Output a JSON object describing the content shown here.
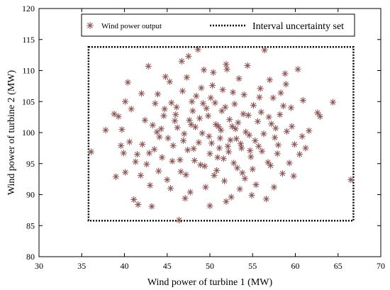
{
  "chart_data": {
    "type": "scatter",
    "xlabel": "Wind power of turbine 1 (MW)",
    "ylabel": "Wind power of turbine 2 (MW)",
    "xlim": [
      30,
      70
    ],
    "ylim": [
      80,
      120
    ],
    "xticks": [
      "30",
      "35",
      "40",
      "45",
      "50",
      "55",
      "60",
      "65",
      "70"
    ],
    "yticks": [
      "80",
      "85",
      "90",
      "95",
      "100",
      "105",
      "110",
      "115",
      "120"
    ],
    "legend": {
      "placement": "top",
      "entries": [
        "Wind power output",
        "Interval uncertainty set"
      ]
    },
    "marker_color": "#8b5555",
    "series": [
      {
        "name": "Wind power output",
        "marker": "asterisk",
        "points": [
          [
            36.1,
            96.9
          ],
          [
            37.8,
            100.4
          ],
          [
            38.8,
            103.0
          ],
          [
            39.3,
            102.6
          ],
          [
            39.6,
            97.9
          ],
          [
            39.9,
            96.7
          ],
          [
            39.7,
            100.5
          ],
          [
            40.1,
            105.0
          ],
          [
            40.4,
            108.1
          ],
          [
            40.1,
            93.6
          ],
          [
            40.8,
            103.8
          ],
          [
            41.1,
            89.2
          ],
          [
            41.6,
            88.4
          ],
          [
            41.5,
            96.5
          ],
          [
            42.1,
            98.1
          ],
          [
            42.6,
            94.9
          ],
          [
            42.8,
            110.7
          ],
          [
            43.2,
            88.1
          ],
          [
            43.3,
            101.2
          ],
          [
            43.6,
            104.7
          ],
          [
            43.9,
            106.2
          ],
          [
            44.1,
            99.3
          ],
          [
            44.4,
            96.0
          ],
          [
            44.7,
            103.8
          ],
          [
            45.0,
            92.4
          ],
          [
            45.3,
            108.2
          ],
          [
            45.6,
            95.4
          ],
          [
            45.9,
            101.9
          ],
          [
            46.1,
            104.1
          ],
          [
            46.4,
            85.9
          ],
          [
            46.7,
            111.5
          ],
          [
            46.9,
            98.7
          ],
          [
            47.2,
            93.2
          ],
          [
            47.5,
            112.3
          ],
          [
            47.7,
            90.4
          ],
          [
            47.8,
            101.3
          ],
          [
            48.1,
            97.4
          ],
          [
            48.4,
            105.9
          ],
          [
            48.6,
            113.4
          ],
          [
            48.9,
            94.8
          ],
          [
            49.1,
            99.9
          ],
          [
            49.3,
            110.1
          ],
          [
            49.5,
            91.2
          ],
          [
            49.8,
            102.7
          ],
          [
            50.0,
            96.6
          ],
          [
            50.0,
            88.2
          ],
          [
            50.3,
            107.6
          ],
          [
            50.6,
            104.8
          ],
          [
            50.8,
            93.9
          ],
          [
            51.0,
            101.0
          ],
          [
            51.2,
            99.1
          ],
          [
            51.4,
            103.5
          ],
          [
            51.6,
            95.8
          ],
          [
            51.9,
            111.0
          ],
          [
            52.1,
            97.8
          ],
          [
            52.3,
            102.1
          ],
          [
            52.5,
            89.6
          ],
          [
            52.7,
            106.5
          ],
          [
            53.0,
            100.6
          ],
          [
            53.2,
            94.3
          ],
          [
            53.4,
            108.7
          ],
          [
            53.6,
            98.2
          ],
          [
            53.9,
            103.0
          ],
          [
            54.1,
            92.6
          ],
          [
            54.4,
            110.8
          ],
          [
            54.6,
            99.6
          ],
          [
            54.8,
            96.1
          ],
          [
            55.1,
            104.4
          ],
          [
            55.4,
            91.6
          ],
          [
            55.6,
            101.8
          ],
          [
            55.9,
            107.1
          ],
          [
            56.1,
            97.0
          ],
          [
            56.4,
            113.3
          ],
          [
            56.6,
            89.3
          ],
          [
            56.9,
            102.5
          ],
          [
            57.1,
            94.7
          ],
          [
            57.4,
            105.6
          ],
          [
            57.6,
            99.2
          ],
          [
            57.9,
            96.6
          ],
          [
            58.2,
            102.9
          ],
          [
            58.5,
            93.4
          ],
          [
            58.8,
            109.5
          ],
          [
            59.0,
            100.2
          ],
          [
            59.3,
            95.1
          ],
          [
            59.5,
            104.0
          ],
          [
            59.9,
            98.1
          ],
          [
            60.3,
            110.2
          ],
          [
            60.5,
            96.5
          ],
          [
            60.8,
            99.4
          ],
          [
            61.2,
            97.5
          ],
          [
            62.6,
            103.2
          ],
          [
            62.9,
            102.6
          ],
          [
            64.4,
            104.9
          ],
          [
            66.5,
            92.4
          ],
          [
            58.9,
            107.8
          ],
          [
            57.5,
            91.2
          ],
          [
            42.0,
            106.3
          ],
          [
            44.8,
            109.0
          ],
          [
            46.0,
            102.9
          ],
          [
            47.0,
            99.8
          ],
          [
            48.3,
            100.9
          ],
          [
            49.6,
            103.9
          ],
          [
            50.2,
            98.3
          ],
          [
            51.3,
            100.4
          ],
          [
            51.8,
            104.1
          ],
          [
            52.4,
            98.8
          ],
          [
            53.3,
            101.6
          ],
          [
            50.7,
            101.3
          ],
          [
            49.9,
            99.4
          ],
          [
            48.8,
            102.3
          ],
          [
            47.4,
            97.2
          ],
          [
            46.5,
            95.6
          ],
          [
            45.7,
            97.9
          ],
          [
            44.3,
            100.6
          ],
          [
            43.5,
            97.3
          ],
          [
            42.4,
            102.0
          ],
          [
            41.9,
            93.1
          ],
          [
            40.6,
            98.5
          ],
          [
            53.7,
            97.5
          ],
          [
            54.2,
            100.1
          ],
          [
            55.3,
            98.7
          ],
          [
            56.0,
            103.3
          ],
          [
            56.8,
            95.2
          ],
          [
            57.7,
            100.7
          ],
          [
            58.0,
            98.0
          ],
          [
            55.0,
            94.1
          ],
          [
            54.0,
            106.1
          ],
          [
            52.9,
            104.6
          ],
          [
            51.5,
            106.9
          ],
          [
            50.4,
            109.7
          ],
          [
            49.0,
            107.2
          ],
          [
            47.9,
            105.0
          ],
          [
            46.8,
            106.7
          ],
          [
            45.5,
            104.8
          ],
          [
            44.6,
            102.7
          ],
          [
            43.8,
            100.1
          ],
          [
            42.9,
            96.7
          ],
          [
            48.2,
            95.5
          ],
          [
            49.4,
            94.6
          ],
          [
            50.5,
            93.1
          ],
          [
            51.7,
            92.2
          ],
          [
            52.8,
            95.1
          ],
          [
            53.8,
            93.5
          ],
          [
            54.7,
            97.1
          ],
          [
            55.7,
            97.8
          ],
          [
            56.3,
            99.8
          ],
          [
            57.2,
            101.4
          ],
          [
            58.6,
            104.3
          ],
          [
            59.6,
            101.0
          ],
          [
            45.1,
            99.1
          ],
          [
            46.2,
            100.8
          ],
          [
            47.6,
            102.0
          ],
          [
            48.7,
            98.4
          ],
          [
            50.9,
            96.0
          ],
          [
            52.2,
            96.9
          ],
          [
            53.1,
            99.0
          ],
          [
            54.5,
            102.8
          ],
          [
            55.8,
            105.7
          ],
          [
            49.2,
            104.7
          ],
          [
            50.1,
            105.6
          ],
          [
            51.1,
            97.5
          ],
          [
            52.6,
            101.0
          ],
          [
            48.0,
            103.5
          ],
          [
            46.6,
            93.7
          ],
          [
            45.4,
            91.0
          ],
          [
            44.0,
            93.8
          ],
          [
            53.5,
            90.9
          ],
          [
            54.9,
            89.9
          ],
          [
            51.9,
            88.9
          ],
          [
            47.1,
            89.4
          ],
          [
            58.3,
            106.4
          ],
          [
            57.0,
            108.5
          ],
          [
            43.0,
            91.5
          ],
          [
            41.3,
            95.3
          ],
          [
            39.0,
            92.9
          ],
          [
            60.9,
            105.2
          ],
          [
            61.6,
            100.3
          ],
          [
            59.8,
            93.0
          ],
          [
            47.3,
            108.9
          ],
          [
            52.0,
            110.2
          ]
        ]
      }
    ],
    "uncertainty_box": {
      "name": "Interval uncertainty set",
      "x": [
        35.8,
        66.8
      ],
      "y": [
        85.8,
        113.8
      ]
    }
  }
}
